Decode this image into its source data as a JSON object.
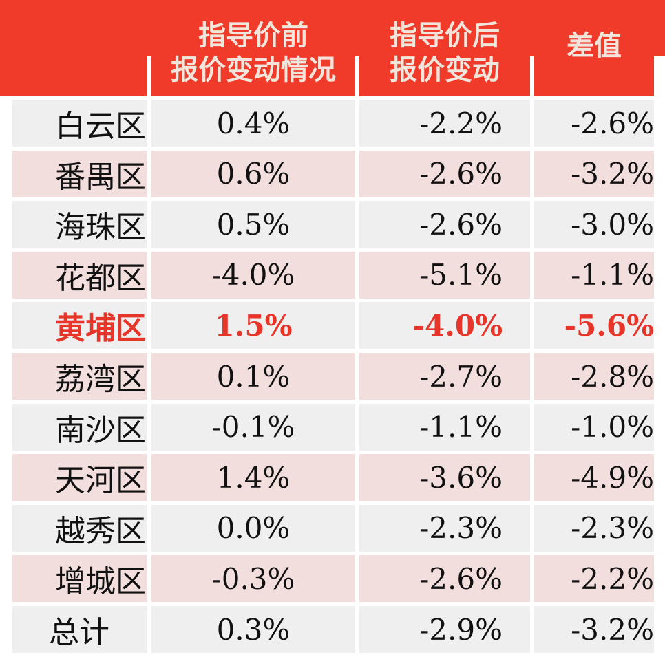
{
  "colors": {
    "header": "#f03a2a",
    "header_text": "#f2e6dc",
    "row_gray": "#efefef",
    "row_pink": "#f3dede",
    "highlight": "#e8352a"
  },
  "headers": [
    {
      "line1": "指导价前",
      "line2": "报价变动情况"
    },
    {
      "line1": "指导价后",
      "line2": "报价变动"
    },
    {
      "line1": "差值",
      "line2": ""
    }
  ],
  "rows": [
    {
      "district": "白云区",
      "before": "0.4%",
      "after": "-2.2%",
      "diff": "-2.6%"
    },
    {
      "district": "番禺区",
      "before": "0.6%",
      "after": "-2.6%",
      "diff": "-3.2%"
    },
    {
      "district": "海珠区",
      "before": "0.5%",
      "after": "-2.6%",
      "diff": "-3.0%"
    },
    {
      "district": "花都区",
      "before": "-4.0%",
      "after": "-5.1%",
      "diff": "-1.1%"
    },
    {
      "district": "黄埔区",
      "before": "1.5%",
      "after": "-4.0%",
      "diff": "-5.6%",
      "highlight": true
    },
    {
      "district": "荔湾区",
      "before": "0.1%",
      "after": "-2.7%",
      "diff": "-2.8%"
    },
    {
      "district": "南沙区",
      "before": "-0.1%",
      "after": "-1.1%",
      "diff": "-1.0%"
    },
    {
      "district": "天河区",
      "before": "1.4%",
      "after": "-3.6%",
      "diff": "-4.9%"
    },
    {
      "district": "越秀区",
      "before": "0.0%",
      "after": "-2.3%",
      "diff": "-2.3%"
    },
    {
      "district": "增城区",
      "before": "-0.3%",
      "after": "-2.6%",
      "diff": "-2.2%"
    },
    {
      "district": "总计",
      "before": "0.3%",
      "after": "-2.9%",
      "diff": "-3.2%"
    }
  ]
}
